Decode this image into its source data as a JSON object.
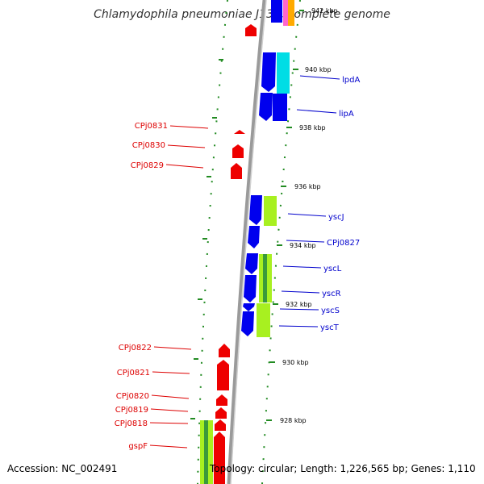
{
  "title": "Chlamydophila pneumoniae J138, complete genome",
  "footer": {
    "accession": "Accession: NC_002491",
    "topology": "Topology: circular; Length: 1,226,565 bp; Genes: 1,110"
  },
  "colors": {
    "forward_gene": "#0000ee",
    "reverse_gene": "#ee0000",
    "forward_label": "#0000cc",
    "reverse_label": "#dd0000",
    "cds_cyan": "#00e5ee",
    "cds_yellowgreen": "#a8f020",
    "cds_green": "#2e8b57",
    "backbone": "#888888",
    "ticks": "#006400"
  },
  "kbp_markers": [
    "942 kbp",
    "940 kbp",
    "938 kbp",
    "936 kbp",
    "934 kbp",
    "932 kbp",
    "930 kbp",
    "928 kbp"
  ],
  "forward_genes": [
    "lpdA",
    "lipA",
    "yscJ",
    "CPj0827",
    "yscL",
    "yscR",
    "yscS",
    "yscT"
  ],
  "reverse_genes": [
    "CPj0831",
    "CPj0830",
    "CPj0829",
    "CPj0822",
    "CPj0821",
    "CPj0820",
    "CPj0819",
    "CPj0818",
    "gspF"
  ]
}
